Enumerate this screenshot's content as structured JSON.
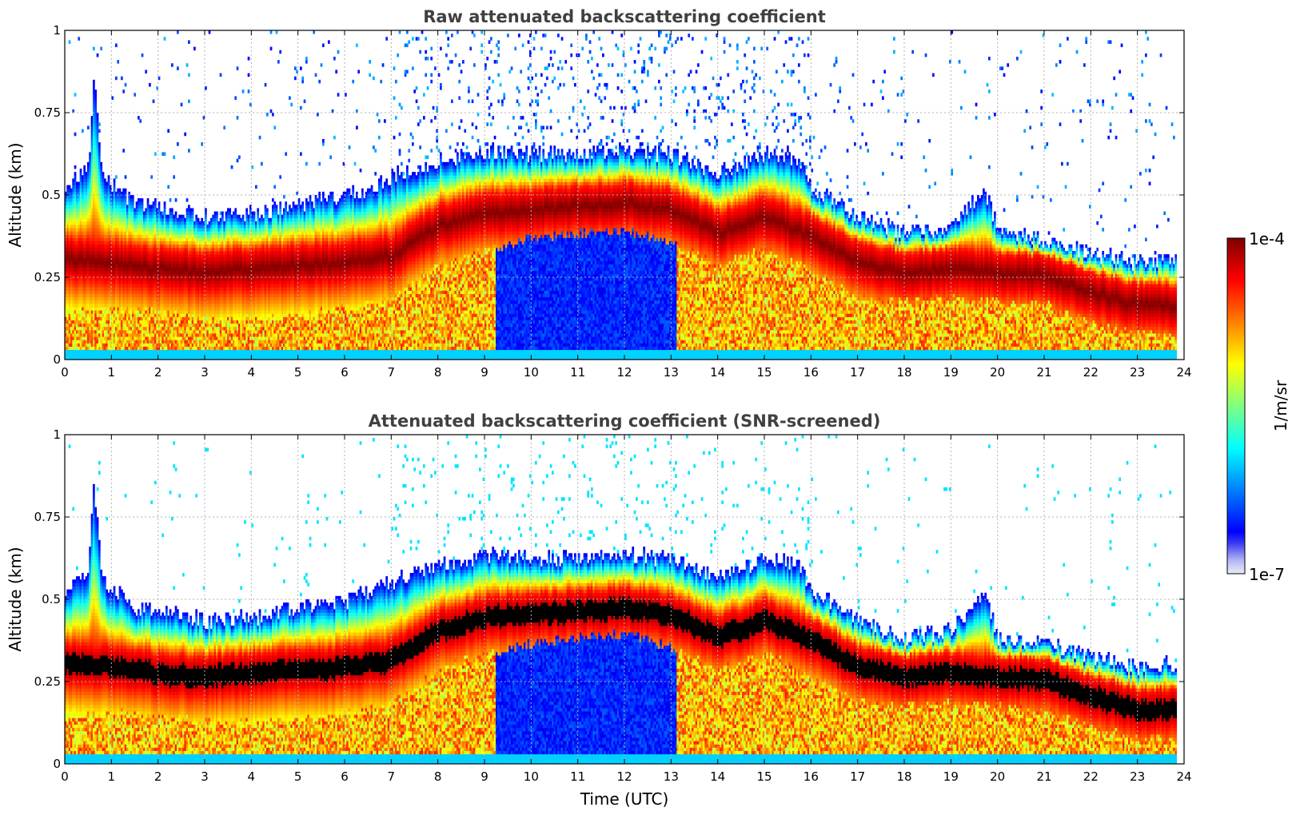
{
  "chart_data": [
    {
      "type": "heatmap",
      "title": "Raw attenuated backscattering coefficient",
      "xlabel": "",
      "ylabel": "Altitude (km)",
      "xlim": [
        0,
        24
      ],
      "ylim": [
        0,
        1
      ],
      "x_ticks": [
        "0",
        "1",
        "2",
        "3",
        "4",
        "5",
        "6",
        "7",
        "8",
        "9",
        "10",
        "11",
        "12",
        "13",
        "14",
        "15",
        "16",
        "17",
        "18",
        "19",
        "20",
        "21",
        "22",
        "23",
        "24"
      ],
      "y_ticks": [
        "0",
        "0.25",
        "0.5",
        "0.75",
        "1"
      ],
      "grid": true,
      "screened": false,
      "layer_top_km": [
        {
          "t": 0,
          "z": 0.52
        },
        {
          "t": 0.5,
          "z": 0.58
        },
        {
          "t": 0.6,
          "z": 0.86
        },
        {
          "t": 0.8,
          "z": 0.55
        },
        {
          "t": 1.5,
          "z": 0.47
        },
        {
          "t": 2,
          "z": 0.46
        },
        {
          "t": 3,
          "z": 0.43
        },
        {
          "t": 4,
          "z": 0.44
        },
        {
          "t": 5,
          "z": 0.47
        },
        {
          "t": 6,
          "z": 0.49
        },
        {
          "t": 7,
          "z": 0.55
        },
        {
          "t": 8,
          "z": 0.6
        },
        {
          "t": 9,
          "z": 0.63
        },
        {
          "t": 10,
          "z": 0.62
        },
        {
          "t": 11,
          "z": 0.62
        },
        {
          "t": 12,
          "z": 0.63
        },
        {
          "t": 13,
          "z": 0.62
        },
        {
          "t": 14,
          "z": 0.56
        },
        {
          "t": 15,
          "z": 0.62
        },
        {
          "t": 15.7,
          "z": 0.6
        },
        {
          "t": 16,
          "z": 0.52
        },
        {
          "t": 17,
          "z": 0.43
        },
        {
          "t": 18,
          "z": 0.38
        },
        {
          "t": 19,
          "z": 0.4
        },
        {
          "t": 19.7,
          "z": 0.52
        },
        {
          "t": 20,
          "z": 0.38
        },
        {
          "t": 21,
          "z": 0.36
        },
        {
          "t": 22,
          "z": 0.32
        },
        {
          "t": 23,
          "z": 0.29
        },
        {
          "t": 23.8,
          "z": 0.3
        }
      ],
      "layer_peak_km": [
        {
          "t": 0,
          "z": 0.3
        },
        {
          "t": 1,
          "z": 0.29
        },
        {
          "t": 2,
          "z": 0.27
        },
        {
          "t": 3,
          "z": 0.26
        },
        {
          "t": 4,
          "z": 0.27
        },
        {
          "t": 5,
          "z": 0.28
        },
        {
          "t": 6,
          "z": 0.29
        },
        {
          "t": 7,
          "z": 0.31
        },
        {
          "t": 8,
          "z": 0.4
        },
        {
          "t": 9,
          "z": 0.44
        },
        {
          "t": 10,
          "z": 0.45
        },
        {
          "t": 11,
          "z": 0.46
        },
        {
          "t": 12,
          "z": 0.47
        },
        {
          "t": 13,
          "z": 0.45
        },
        {
          "t": 14,
          "z": 0.38
        },
        {
          "t": 15,
          "z": 0.43
        },
        {
          "t": 16,
          "z": 0.37
        },
        {
          "t": 17,
          "z": 0.29
        },
        {
          "t": 18,
          "z": 0.26
        },
        {
          "t": 19,
          "z": 0.27
        },
        {
          "t": 20,
          "z": 0.26
        },
        {
          "t": 21,
          "z": 0.25
        },
        {
          "t": 22,
          "z": 0.2
        },
        {
          "t": 23,
          "z": 0.16
        },
        {
          "t": 23.8,
          "z": 0.16
        }
      ],
      "layer_bottom_km": [
        {
          "t": 0,
          "z": 0.14
        },
        {
          "t": 1,
          "z": 0.15
        },
        {
          "t": 2,
          "z": 0.14
        },
        {
          "t": 3,
          "z": 0.12
        },
        {
          "t": 4,
          "z": 0.12
        },
        {
          "t": 5,
          "z": 0.13
        },
        {
          "t": 6,
          "z": 0.15
        },
        {
          "t": 7,
          "z": 0.18
        },
        {
          "t": 8,
          "z": 0.28
        },
        {
          "t": 9,
          "z": 0.33
        },
        {
          "t": 10,
          "z": 0.36
        },
        {
          "t": 11,
          "z": 0.38
        },
        {
          "t": 12,
          "z": 0.39
        },
        {
          "t": 13,
          "z": 0.35
        },
        {
          "t": 14,
          "z": 0.28
        },
        {
          "t": 15,
          "z": 0.33
        },
        {
          "t": 16,
          "z": 0.26
        },
        {
          "t": 17,
          "z": 0.18
        },
        {
          "t": 18,
          "z": 0.17
        },
        {
          "t": 19,
          "z": 0.18
        },
        {
          "t": 20,
          "z": 0.17
        },
        {
          "t": 21,
          "z": 0.16
        },
        {
          "t": 22,
          "z": 0.11
        },
        {
          "t": 23,
          "z": 0.07
        },
        {
          "t": 23.8,
          "z": 0.07
        }
      ],
      "data_end_hour": 23.8,
      "log_value_range": [
        -7,
        -4
      ]
    },
    {
      "type": "heatmap",
      "title": "Attenuated backscattering coefficient (SNR-screened)",
      "xlabel": "Time (UTC)",
      "ylabel": "Altitude (km)",
      "xlim": [
        0,
        24
      ],
      "ylim": [
        0,
        1
      ],
      "x_ticks": [
        "0",
        "1",
        "2",
        "3",
        "4",
        "5",
        "6",
        "7",
        "8",
        "9",
        "10",
        "11",
        "12",
        "13",
        "14",
        "15",
        "16",
        "17",
        "18",
        "19",
        "20",
        "21",
        "22",
        "23",
        "24"
      ],
      "y_ticks": [
        "0",
        "0.25",
        "0.5",
        "0.75",
        "1"
      ],
      "grid": true,
      "screened": true,
      "saturated_color": "#000000",
      "data_end_hour": 23.8,
      "log_value_range": [
        -7,
        -4
      ]
    }
  ],
  "colorbar": {
    "label": "1/m/sr",
    "max_label": "1e-4",
    "min_label": "1e-7",
    "colormap": "jet",
    "low_end_colors": [
      "#e6e6fa",
      "#c8c8f5",
      "#9696f0",
      "#6464ea"
    ]
  }
}
